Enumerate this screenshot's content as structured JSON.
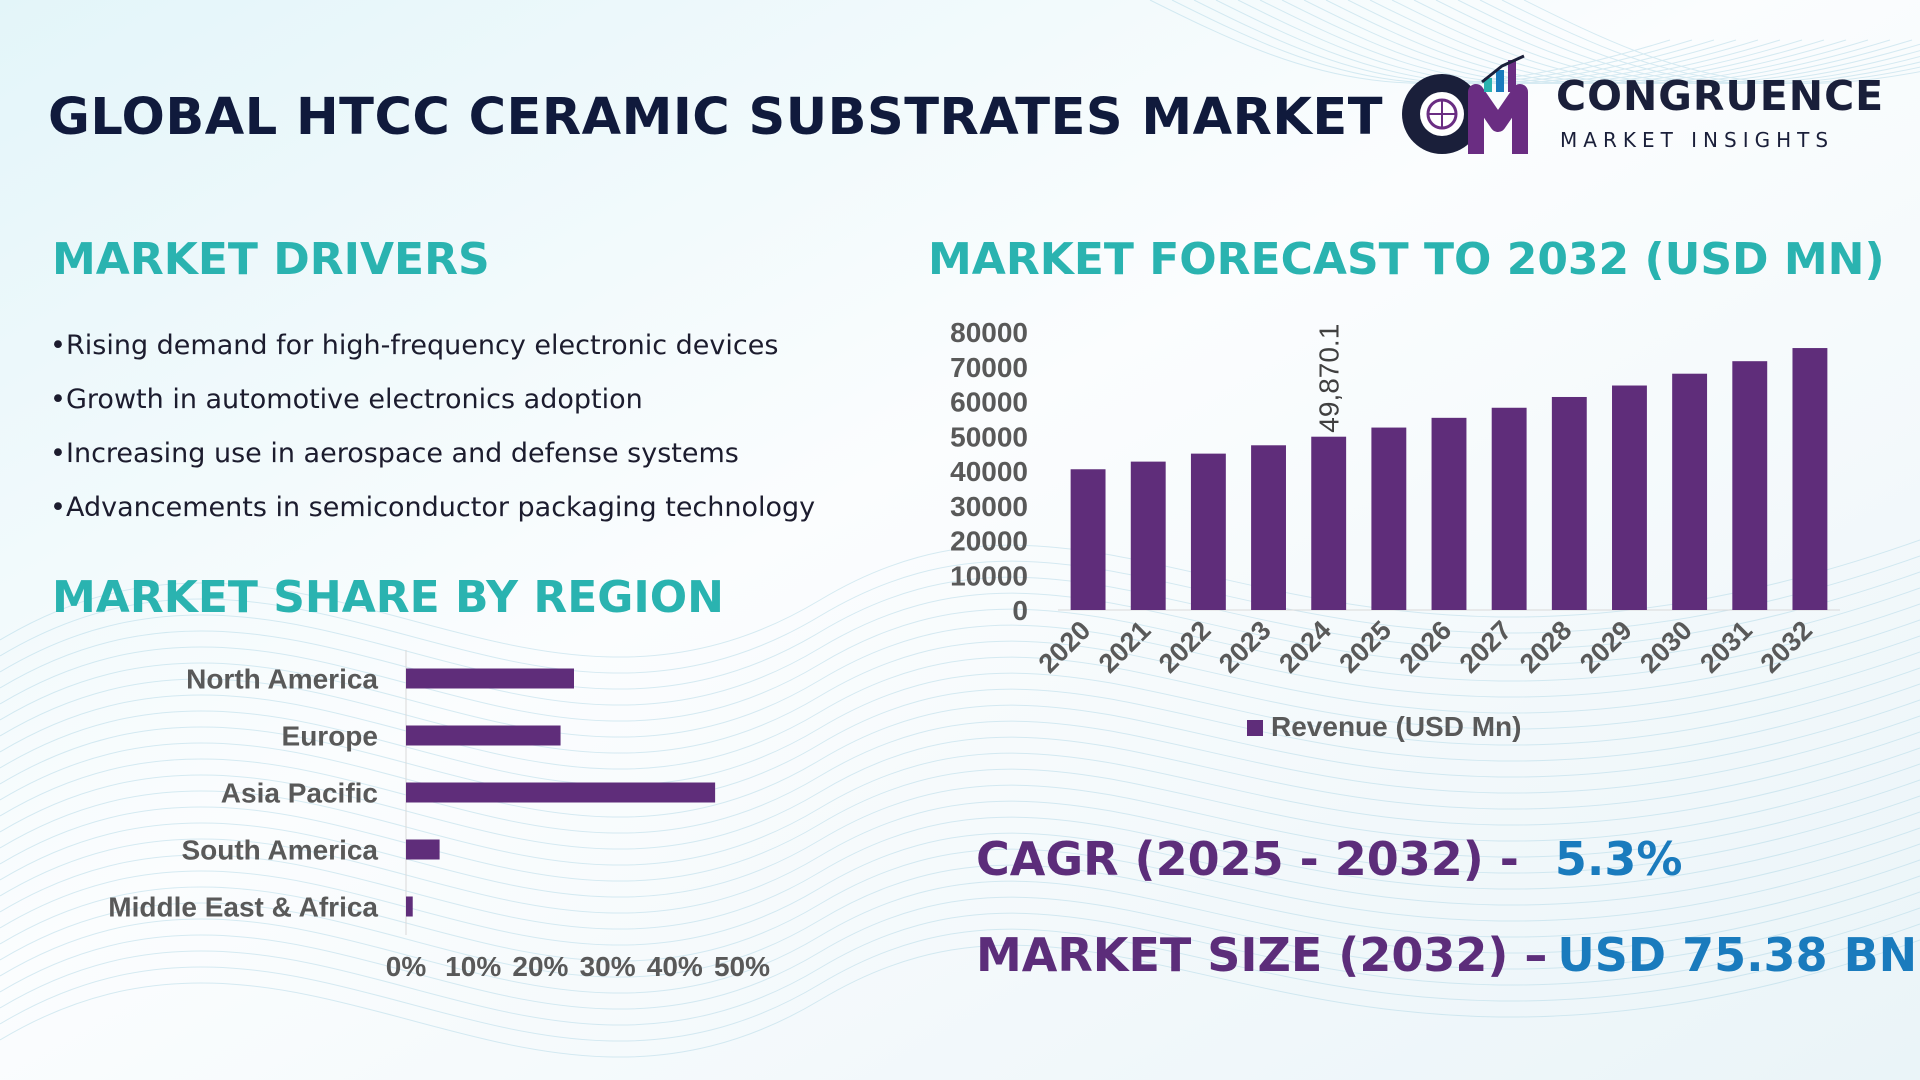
{
  "title": "GLOBAL HTCC CERAMIC SUBSTRATES MARKET",
  "logo": {
    "brand": "CONGRUENCE",
    "tagline": "MARKET INSIGHTS"
  },
  "drivers": {
    "title": "MARKET DRIVERS",
    "bullet": "•",
    "items": [
      "Rising demand for high-frequency electronic devices",
      "Growth in automotive electronics adoption",
      "Increasing use in aerospace and defense systems",
      "Advancements in semiconductor packaging technology"
    ]
  },
  "region": {
    "title": "MARKET SHARE BY REGION"
  },
  "forecast": {
    "title": "MARKET FORECAST TO 2032 (USD MN)"
  },
  "kpis": {
    "cagr_label": "CAGR (2025 - 2032) -",
    "cagr_value": "5.3%",
    "size_label": "MARKET SIZE (2032) –",
    "size_value": "USD 75.38 BN"
  },
  "colors": {
    "bar": "#5f2d7a",
    "teal": "#2ab3b0",
    "purple_text": "#5c2d7a",
    "blue_text": "#1a7bbd",
    "axis_text": "#595959"
  },
  "chart_data": [
    {
      "type": "bar",
      "orientation": "horizontal",
      "title": "MARKET SHARE BY REGION",
      "categories": [
        "North America",
        "Europe",
        "Asia Pacific",
        "South America",
        "Middle East & Africa"
      ],
      "values": [
        25,
        23,
        46,
        5,
        1
      ],
      "xlim": [
        0,
        50
      ],
      "xticks": [
        "0%",
        "10%",
        "20%",
        "30%",
        "40%",
        "50%"
      ]
    },
    {
      "type": "bar",
      "orientation": "vertical",
      "title": "MARKET FORECAST TO 2032 (USD MN)",
      "categories": [
        "2020",
        "2021",
        "2022",
        "2023",
        "2024",
        "2025",
        "2026",
        "2027",
        "2028",
        "2029",
        "2030",
        "2031",
        "2032"
      ],
      "series": [
        {
          "name": "Revenue (USD Mn)",
          "values": [
            40500,
            42700,
            45000,
            47400,
            49870.1,
            52500,
            55300,
            58200,
            61300,
            64600,
            68000,
            71600,
            75380
          ]
        }
      ],
      "ylim": [
        0,
        80000
      ],
      "yticks": [
        "0",
        "10000",
        "20000",
        "30000",
        "40000",
        "50000",
        "60000",
        "70000",
        "80000"
      ],
      "data_labels": [
        {
          "category": "2024",
          "text": "49,870.1"
        }
      ],
      "legend": "bottom"
    }
  ]
}
